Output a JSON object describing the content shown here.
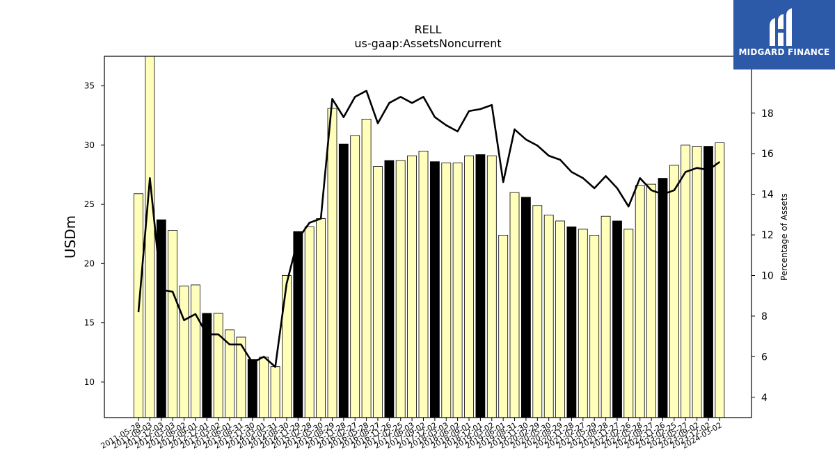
{
  "chart_data": {
    "type": "bar",
    "title": "RELL",
    "subtitle": "us-gaap:AssetsNoncurrent",
    "ylabel": "USDm",
    "y2label": "Percentage of Assets",
    "ylim": [
      7,
      37.5
    ],
    "y2lim": [
      3,
      20.8
    ],
    "yticks": [
      10,
      15,
      20,
      25,
      30,
      35
    ],
    "y2ticks": [
      4,
      6,
      8,
      10,
      12,
      14,
      16,
      18
    ],
    "categories": [
      "2011-05-28",
      "2011-09-03",
      "2011-12-03",
      "2012-03-03",
      "2012-06-02",
      "2012-09-01",
      "2012-12-01",
      "2013-03-02",
      "2013-06-01",
      "2013-08-31",
      "2013-11-30",
      "2014-03-01",
      "2014-05-31",
      "2014-08-30",
      "2014-11-29",
      "2015-02-28",
      "2015-05-30",
      "2015-08-29",
      "2015-11-28",
      "2016-02-27",
      "2016-05-28",
      "2016-08-27",
      "2016-11-26",
      "2017-02-25",
      "2017-06-03",
      "2017-09-02",
      "2017-12-02",
      "2018-03-03",
      "2018-06-02",
      "2018-09-01",
      "2018-12-01",
      "2019-03-02",
      "2019-06-01",
      "2019-08-31",
      "2019-11-30",
      "2020-02-29",
      "2020-05-30",
      "2020-08-29",
      "2020-11-28",
      "2021-02-27",
      "2021-05-29",
      "2021-08-28",
      "2021-11-27",
      "2022-02-26",
      "2022-05-28",
      "2022-08-27",
      "2022-11-26",
      "2023-02-25",
      "2023-05-27",
      "2023-09-02",
      "2023-12-02",
      "2024-03-02"
    ],
    "tick_labels": [
      "2011-05-28",
      "2011-09-03",
      "2011-12-03",
      "2012-03-03",
      "2012-06-02",
      "2012-09-01",
      "2012-12-01",
      "2013-03-02",
      "2013-06-01",
      "2013-08-31",
      "2013-11-30",
      "2014-03-01",
      "2014-05-31",
      "2014-08-30",
      "2014-11-29",
      "2015-02-28",
      "2015-05-30",
      "2015-08-29",
      "2015-11-28",
      "2016-02-27",
      "2016-05-28",
      "2016-08-27",
      "2016-11-26",
      "2017-02-25",
      "2017-06-03",
      "2017-09-02",
      "2017-12-02",
      "2018-03-03",
      "2018-06-02",
      "2018-09-01",
      "2018-12-01",
      "2019-03-02",
      "2019-06-01",
      "2019-08-31",
      "2019-11-30",
      "2020-02-29",
      "2020-05-30",
      "2020-08-29",
      "2020-11-28",
      "2021-02-27",
      "2021-05-29",
      "2021-08-28",
      "2021-11-27",
      "2022-02-26",
      "2022-05-28",
      "2022-08-27",
      "2022-11-26",
      "2023-02-25",
      "2023-05-27",
      "2023-09-02",
      "2023-12-02",
      "2024-03-02"
    ],
    "series": [
      {
        "type": "bar",
        "axis": "left",
        "values": [
          25.9,
          37.5,
          23.7,
          22.8,
          18.1,
          18.2,
          15.8,
          15.8,
          14.4,
          13.8,
          11.9,
          12.1,
          11.3,
          19.0,
          22.7,
          23.1,
          23.8,
          33.1,
          30.1,
          30.8,
          32.2,
          28.2,
          28.7,
          28.7,
          29.1,
          29.5,
          28.6,
          28.5,
          28.5,
          29.1,
          29.2,
          29.1,
          22.4,
          26.0,
          25.6,
          24.9,
          24.1,
          23.6,
          23.1,
          22.9,
          22.4,
          24.0,
          23.6,
          22.9,
          26.6,
          26.7,
          27.2,
          28.3,
          30.0,
          29.9,
          29.9,
          30.2
        ],
        "highlight": [
          false,
          false,
          true,
          false,
          false,
          false,
          true,
          false,
          false,
          false,
          true,
          false,
          false,
          false,
          true,
          false,
          false,
          false,
          true,
          false,
          false,
          false,
          true,
          false,
          false,
          false,
          true,
          false,
          false,
          false,
          true,
          false,
          false,
          false,
          true,
          false,
          false,
          false,
          true,
          false,
          false,
          false,
          true,
          false,
          false,
          false,
          true,
          false,
          false,
          false,
          true,
          false
        ]
      },
      {
        "type": "line",
        "axis": "right",
        "values": [
          8.2,
          14.8,
          9.3,
          9.2,
          7.8,
          8.1,
          7.1,
          7.1,
          6.6,
          6.6,
          5.7,
          6.0,
          5.5,
          9.6,
          11.8,
          12.6,
          12.8,
          18.7,
          17.8,
          18.8,
          19.1,
          17.5,
          18.5,
          18.8,
          18.5,
          18.8,
          17.8,
          17.4,
          17.1,
          18.1,
          18.2,
          18.4,
          14.6,
          17.2,
          16.7,
          16.4,
          15.9,
          15.7,
          15.1,
          14.8,
          14.3,
          14.9,
          14.3,
          13.4,
          14.8,
          14.2,
          14.0,
          14.2,
          15.1,
          15.3,
          15.2,
          15.6
        ]
      }
    ],
    "colors": {
      "bar": "#ffffbb",
      "bar_highlight": "#000000",
      "line": "#000000",
      "edge": "#000000"
    },
    "grid": false
  },
  "logo": {
    "text": "MIDGARD FINANCE",
    "bg": "#2c59a8"
  }
}
